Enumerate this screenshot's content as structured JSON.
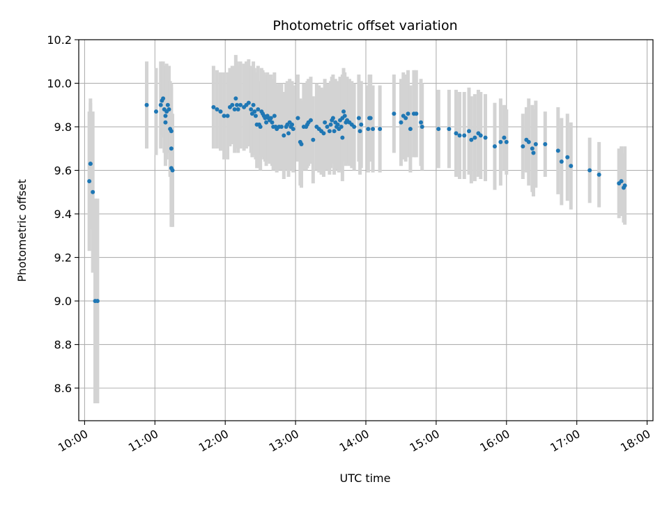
{
  "chart_data": {
    "type": "scatter",
    "title": "Photometric offset variation",
    "xlabel": "UTC time",
    "ylabel": "Photometric offset",
    "xlim": [
      "09:55",
      "18:05"
    ],
    "ylim": [
      8.45,
      10.2
    ],
    "grid": true,
    "colors": {
      "points": "#1f77b4",
      "errorbars": "#d3d3d3",
      "grid": "#b0b0b0"
    },
    "x_ticks": [
      "10:00",
      "11:00",
      "12:00",
      "13:00",
      "14:00",
      "15:00",
      "16:00",
      "17:00",
      "18:00"
    ],
    "y_ticks": [
      "8.6",
      "8.8",
      "9.0",
      "9.2",
      "9.4",
      "9.6",
      "9.8",
      "10.0",
      "10.2"
    ],
    "points": [
      {
        "x": "10:04",
        "y": 9.55,
        "err": 0.32
      },
      {
        "x": "10:05",
        "y": 9.63,
        "err": 0.3
      },
      {
        "x": "10:05",
        "y": 9.63,
        "err": 0.28
      },
      {
        "x": "10:07",
        "y": 9.5,
        "err": 0.37
      },
      {
        "x": "10:09",
        "y": 9.0,
        "err": 0.47
      },
      {
        "x": "10:11",
        "y": 9.0,
        "err": 0.47
      },
      {
        "x": "10:53",
        "y": 9.9,
        "err": 0.2
      },
      {
        "x": "11:01",
        "y": 9.87,
        "err": 0.2
      },
      {
        "x": "11:05",
        "y": 9.9,
        "err": 0.2
      },
      {
        "x": "11:06",
        "y": 9.92,
        "err": 0.17
      },
      {
        "x": "11:07",
        "y": 9.93,
        "err": 0.17
      },
      {
        "x": "11:08",
        "y": 9.88,
        "err": 0.2
      },
      {
        "x": "11:09",
        "y": 9.85,
        "err": 0.2
      },
      {
        "x": "11:09",
        "y": 9.82,
        "err": 0.2
      },
      {
        "x": "11:10",
        "y": 9.87,
        "err": 0.22
      },
      {
        "x": "11:11",
        "y": 9.9,
        "err": 0.18
      },
      {
        "x": "11:12",
        "y": 9.88,
        "err": 0.2
      },
      {
        "x": "11:13",
        "y": 9.79,
        "err": 0.22
      },
      {
        "x": "11:14",
        "y": 9.78,
        "err": 0.2
      },
      {
        "x": "11:14",
        "y": 9.7,
        "err": 0.3
      },
      {
        "x": "11:14",
        "y": 9.61,
        "err": 0.27
      },
      {
        "x": "11:15",
        "y": 9.6,
        "err": 0.26
      },
      {
        "x": "11:50",
        "y": 9.89,
        "err": 0.19
      },
      {
        "x": "11:53",
        "y": 9.88,
        "err": 0.18
      },
      {
        "x": "11:56",
        "y": 9.87,
        "err": 0.18
      },
      {
        "x": "11:59",
        "y": 9.85,
        "err": 0.2
      },
      {
        "x": "12:02",
        "y": 9.85,
        "err": 0.2
      },
      {
        "x": "12:04",
        "y": 9.89,
        "err": 0.18
      },
      {
        "x": "12:06",
        "y": 9.9,
        "err": 0.18
      },
      {
        "x": "12:08",
        "y": 9.88,
        "err": 0.2
      },
      {
        "x": "12:09",
        "y": 9.93,
        "err": 0.2
      },
      {
        "x": "12:10",
        "y": 9.9,
        "err": 0.2
      },
      {
        "x": "12:11",
        "y": 9.88,
        "err": 0.2
      },
      {
        "x": "12:13",
        "y": 9.9,
        "err": 0.2
      },
      {
        "x": "12:16",
        "y": 9.89,
        "err": 0.2
      },
      {
        "x": "12:18",
        "y": 9.9,
        "err": 0.2
      },
      {
        "x": "12:20",
        "y": 9.91,
        "err": 0.2
      },
      {
        "x": "12:22",
        "y": 9.88,
        "err": 0.2
      },
      {
        "x": "12:23",
        "y": 9.86,
        "err": 0.2
      },
      {
        "x": "12:24",
        "y": 9.9,
        "err": 0.2
      },
      {
        "x": "12:25",
        "y": 9.87,
        "err": 0.2
      },
      {
        "x": "12:26",
        "y": 9.85,
        "err": 0.2
      },
      {
        "x": "12:27",
        "y": 9.81,
        "err": 0.2
      },
      {
        "x": "12:28",
        "y": 9.88,
        "err": 0.2
      },
      {
        "x": "12:29",
        "y": 9.81,
        "err": 0.2
      },
      {
        "x": "12:30",
        "y": 9.8,
        "err": 0.2
      },
      {
        "x": "12:31",
        "y": 9.87,
        "err": 0.2
      },
      {
        "x": "12:32",
        "y": 9.86,
        "err": 0.2
      },
      {
        "x": "12:33",
        "y": 9.85,
        "err": 0.2
      },
      {
        "x": "12:34",
        "y": 9.84,
        "err": 0.2
      },
      {
        "x": "12:35",
        "y": 9.82,
        "err": 0.2
      },
      {
        "x": "12:36",
        "y": 9.85,
        "err": 0.2
      },
      {
        "x": "12:37",
        "y": 9.84,
        "err": 0.2
      },
      {
        "x": "12:38",
        "y": 9.83,
        "err": 0.2
      },
      {
        "x": "12:39",
        "y": 9.84,
        "err": 0.2
      },
      {
        "x": "12:40",
        "y": 9.82,
        "err": 0.2
      },
      {
        "x": "12:41",
        "y": 9.8,
        "err": 0.2
      },
      {
        "x": "12:42",
        "y": 9.85,
        "err": 0.2
      },
      {
        "x": "12:43",
        "y": 9.8,
        "err": 0.2
      },
      {
        "x": "12:44",
        "y": 9.79,
        "err": 0.2
      },
      {
        "x": "12:46",
        "y": 9.8,
        "err": 0.2
      },
      {
        "x": "12:48",
        "y": 9.8,
        "err": 0.2
      },
      {
        "x": "12:50",
        "y": 9.76,
        "err": 0.2
      },
      {
        "x": "12:52",
        "y": 9.8,
        "err": 0.2
      },
      {
        "x": "12:53",
        "y": 9.81,
        "err": 0.2
      },
      {
        "x": "12:54",
        "y": 9.77,
        "err": 0.2
      },
      {
        "x": "12:55",
        "y": 9.82,
        "err": 0.2
      },
      {
        "x": "12:56",
        "y": 9.8,
        "err": 0.2
      },
      {
        "x": "12:57",
        "y": 9.81,
        "err": 0.2
      },
      {
        "x": "12:58",
        "y": 9.79,
        "err": 0.2
      },
      {
        "x": "13:02",
        "y": 9.84,
        "err": 0.2
      },
      {
        "x": "13:04",
        "y": 9.73,
        "err": 0.2
      },
      {
        "x": "13:05",
        "y": 9.72,
        "err": 0.2
      },
      {
        "x": "13:07",
        "y": 9.8,
        "err": 0.2
      },
      {
        "x": "13:09",
        "y": 9.8,
        "err": 0.2
      },
      {
        "x": "13:10",
        "y": 9.81,
        "err": 0.2
      },
      {
        "x": "13:11",
        "y": 9.82,
        "err": 0.2
      },
      {
        "x": "13:13",
        "y": 9.83,
        "err": 0.2
      },
      {
        "x": "13:15",
        "y": 9.74,
        "err": 0.2
      },
      {
        "x": "13:18",
        "y": 9.8,
        "err": 0.2
      },
      {
        "x": "13:20",
        "y": 9.79,
        "err": 0.2
      },
      {
        "x": "13:22",
        "y": 9.78,
        "err": 0.2
      },
      {
        "x": "13:24",
        "y": 9.77,
        "err": 0.2
      },
      {
        "x": "13:25",
        "y": 9.82,
        "err": 0.2
      },
      {
        "x": "13:27",
        "y": 9.8,
        "err": 0.2
      },
      {
        "x": "13:29",
        "y": 9.78,
        "err": 0.2
      },
      {
        "x": "13:30",
        "y": 9.81,
        "err": 0.2
      },
      {
        "x": "13:31",
        "y": 9.83,
        "err": 0.2
      },
      {
        "x": "13:32",
        "y": 9.84,
        "err": 0.2
      },
      {
        "x": "13:33",
        "y": 9.78,
        "err": 0.2
      },
      {
        "x": "13:34",
        "y": 9.82,
        "err": 0.2
      },
      {
        "x": "13:35",
        "y": 9.8,
        "err": 0.2
      },
      {
        "x": "13:36",
        "y": 9.81,
        "err": 0.2
      },
      {
        "x": "13:37",
        "y": 9.79,
        "err": 0.2
      },
      {
        "x": "13:38",
        "y": 9.83,
        "err": 0.2
      },
      {
        "x": "13:39",
        "y": 9.8,
        "err": 0.2
      },
      {
        "x": "13:40",
        "y": 9.84,
        "err": 0.2
      },
      {
        "x": "13:40",
        "y": 9.75,
        "err": 0.2
      },
      {
        "x": "13:41",
        "y": 9.87,
        "err": 0.2
      },
      {
        "x": "13:42",
        "y": 9.85,
        "err": 0.2
      },
      {
        "x": "13:43",
        "y": 9.82,
        "err": 0.2
      },
      {
        "x": "13:44",
        "y": 9.83,
        "err": 0.2
      },
      {
        "x": "13:46",
        "y": 9.82,
        "err": 0.2
      },
      {
        "x": "13:48",
        "y": 9.81,
        "err": 0.2
      },
      {
        "x": "13:50",
        "y": 9.8,
        "err": 0.2
      },
      {
        "x": "13:54",
        "y": 9.84,
        "err": 0.2
      },
      {
        "x": "13:55",
        "y": 9.78,
        "err": 0.2
      },
      {
        "x": "13:56",
        "y": 9.81,
        "err": 0.2
      },
      {
        "x": "14:02",
        "y": 9.79,
        "err": 0.2
      },
      {
        "x": "14:03",
        "y": 9.84,
        "err": 0.2
      },
      {
        "x": "14:04",
        "y": 9.84,
        "err": 0.2
      },
      {
        "x": "14:06",
        "y": 9.79,
        "err": 0.2
      },
      {
        "x": "14:12",
        "y": 9.79,
        "err": 0.2
      },
      {
        "x": "14:24",
        "y": 9.86,
        "err": 0.18
      },
      {
        "x": "14:30",
        "y": 9.82,
        "err": 0.2
      },
      {
        "x": "14:32",
        "y": 9.85,
        "err": 0.2
      },
      {
        "x": "14:34",
        "y": 9.84,
        "err": 0.2
      },
      {
        "x": "14:36",
        "y": 9.86,
        "err": 0.2
      },
      {
        "x": "14:38",
        "y": 9.79,
        "err": 0.2
      },
      {
        "x": "14:41",
        "y": 9.86,
        "err": 0.2
      },
      {
        "x": "14:43",
        "y": 9.86,
        "err": 0.2
      },
      {
        "x": "14:47",
        "y": 9.82,
        "err": 0.2
      },
      {
        "x": "14:48",
        "y": 9.8,
        "err": 0.2
      },
      {
        "x": "15:02",
        "y": 9.79,
        "err": 0.18
      },
      {
        "x": "15:11",
        "y": 9.79,
        "err": 0.18
      },
      {
        "x": "15:17",
        "y": 9.77,
        "err": 0.2
      },
      {
        "x": "15:20",
        "y": 9.76,
        "err": 0.2
      },
      {
        "x": "15:24",
        "y": 9.76,
        "err": 0.2
      },
      {
        "x": "15:28",
        "y": 9.78,
        "err": 0.2
      },
      {
        "x": "15:30",
        "y": 9.74,
        "err": 0.2
      },
      {
        "x": "15:33",
        "y": 9.75,
        "err": 0.2
      },
      {
        "x": "15:36",
        "y": 9.77,
        "err": 0.2
      },
      {
        "x": "15:38",
        "y": 9.76,
        "err": 0.2
      },
      {
        "x": "15:42",
        "y": 9.75,
        "err": 0.2
      },
      {
        "x": "15:50",
        "y": 9.71,
        "err": 0.2
      },
      {
        "x": "15:55",
        "y": 9.73,
        "err": 0.2
      },
      {
        "x": "15:58",
        "y": 9.75,
        "err": 0.15
      },
      {
        "x": "16:00",
        "y": 9.73,
        "err": 0.15
      },
      {
        "x": "16:14",
        "y": 9.71,
        "err": 0.15
      },
      {
        "x": "16:17",
        "y": 9.74,
        "err": 0.15
      },
      {
        "x": "16:19",
        "y": 9.73,
        "err": 0.2
      },
      {
        "x": "16:22",
        "y": 9.7,
        "err": 0.2
      },
      {
        "x": "16:23",
        "y": 9.68,
        "err": 0.2
      },
      {
        "x": "16:25",
        "y": 9.72,
        "err": 0.2
      },
      {
        "x": "16:33",
        "y": 9.72,
        "err": 0.15
      },
      {
        "x": "16:44",
        "y": 9.69,
        "err": 0.2
      },
      {
        "x": "16:47",
        "y": 9.64,
        "err": 0.2
      },
      {
        "x": "16:52",
        "y": 9.66,
        "err": 0.2
      },
      {
        "x": "16:55",
        "y": 9.62,
        "err": 0.2
      },
      {
        "x": "17:11",
        "y": 9.6,
        "err": 0.15
      },
      {
        "x": "17:19",
        "y": 9.58,
        "err": 0.15
      },
      {
        "x": "17:36",
        "y": 9.54,
        "err": 0.16
      },
      {
        "x": "17:38",
        "y": 9.55,
        "err": 0.16
      },
      {
        "x": "17:40",
        "y": 9.52,
        "err": 0.16
      },
      {
        "x": "17:41",
        "y": 9.53,
        "err": 0.18
      }
    ]
  }
}
